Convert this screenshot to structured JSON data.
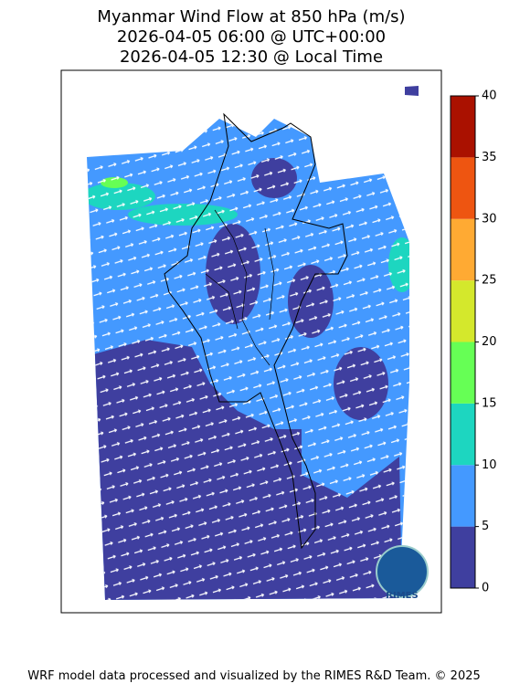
{
  "header": {
    "title_lines": [
      "Myanmar Wind Flow at 850 hPa (m/s)",
      "2026-04-05 06:00 @ UTC+00:00",
      "2026-04-05 12:30 @ Local Time"
    ]
  },
  "colorbar": {
    "lim": [
      0,
      40
    ],
    "ticks": [
      0,
      5,
      10,
      15,
      20,
      25,
      30,
      35,
      40
    ],
    "colors": [
      "#3f3f9f",
      "#4499ff",
      "#1dd6c0",
      "#66ff55",
      "#d4e82c",
      "#ffaa33",
      "#ee5511",
      "#aa1100"
    ]
  },
  "logo_text": "RIMES",
  "footer": "WRF model data processed and visualized by the RIMES R&D Team. © 2025"
}
